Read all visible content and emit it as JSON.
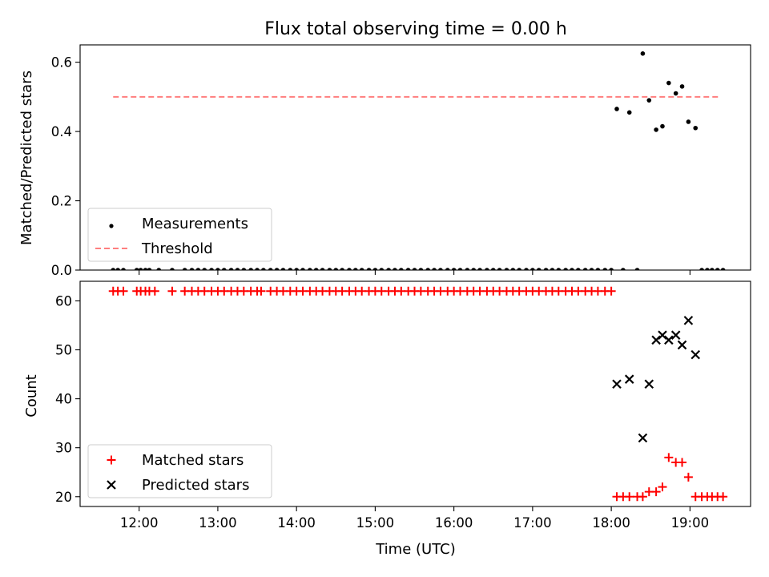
{
  "chart_data": [
    {
      "type": "scatter",
      "title": "Flux total observing time = 0.00 h",
      "xlabel": "",
      "ylabel": "Matched/Predicted stars",
      "xlim": [
        11.25,
        19.77
      ],
      "ylim": [
        0.0,
        0.65
      ],
      "yticks": [
        "0.0",
        "0.2",
        "0.4",
        "0.6"
      ],
      "legend_position": "lower-left",
      "series": [
        {
          "name": "Measurements",
          "marker": "dot",
          "color": "#000000",
          "x": [
            11.67,
            11.73,
            11.8,
            11.97,
            12.02,
            12.08,
            12.13,
            12.25,
            12.42,
            12.58,
            12.67,
            12.75,
            12.83,
            12.92,
            13.0,
            13.08,
            13.17,
            13.25,
            13.33,
            13.42,
            13.5,
            13.58,
            13.67,
            13.75,
            13.83,
            13.92,
            14.0,
            14.08,
            14.17,
            14.25,
            14.33,
            14.42,
            14.5,
            14.58,
            14.67,
            14.75,
            14.83,
            14.92,
            15.0,
            15.08,
            15.17,
            15.25,
            15.33,
            15.42,
            15.5,
            15.58,
            15.67,
            15.75,
            15.83,
            15.92,
            16.0,
            16.08,
            16.17,
            16.25,
            16.33,
            16.42,
            16.5,
            16.58,
            16.67,
            16.75,
            16.83,
            16.92,
            17.0,
            17.08,
            17.17,
            17.25,
            17.33,
            17.42,
            17.5,
            17.58,
            17.67,
            17.75,
            17.83,
            17.92,
            18.0,
            18.07,
            18.15,
            18.23,
            18.33,
            18.4,
            18.48,
            18.57,
            18.65,
            18.73,
            18.82,
            18.9,
            18.98,
            19.07,
            19.15,
            19.22,
            19.28,
            19.35,
            19.42
          ],
          "y": [
            0,
            0,
            0,
            0,
            0,
            0,
            0,
            0,
            0,
            0,
            0,
            0,
            0,
            0,
            0,
            0,
            0,
            0,
            0,
            0,
            0,
            0,
            0,
            0,
            0,
            0,
            0,
            0,
            0,
            0,
            0,
            0,
            0,
            0,
            0,
            0,
            0,
            0,
            0,
            0,
            0,
            0,
            0,
            0,
            0,
            0,
            0,
            0,
            0,
            0,
            0,
            0,
            0,
            0,
            0,
            0,
            0,
            0,
            0,
            0,
            0,
            0,
            0,
            0,
            0,
            0,
            0,
            0,
            0,
            0,
            0,
            0,
            0,
            0,
            0,
            0.465,
            0,
            0.455,
            0,
            0.625,
            0.49,
            0.405,
            0.415,
            0.54,
            0.51,
            0.53,
            0.428,
            0.41,
            0,
            0,
            0,
            0,
            0
          ]
        },
        {
          "name": "Threshold",
          "marker": "dashed-line",
          "color": "#ff7f7f",
          "x": [
            11.67,
            19.37
          ],
          "y": [
            0.5,
            0.5
          ]
        }
      ]
    },
    {
      "type": "scatter",
      "title": "",
      "xlabel": "Time (UTC)",
      "ylabel": "Count",
      "xlim": [
        11.25,
        19.77
      ],
      "ylim": [
        18,
        64
      ],
      "yticks": [
        "20",
        "30",
        "40",
        "50",
        "60"
      ],
      "xticks": [
        "12:00",
        "13:00",
        "14:00",
        "15:00",
        "16:00",
        "17:00",
        "18:00",
        "19:00"
      ],
      "legend_position": "lower-left",
      "series": [
        {
          "name": "Matched stars",
          "marker": "plus",
          "color": "#ff0000",
          "x": [
            11.67,
            11.73,
            11.8,
            11.97,
            12.02,
            12.08,
            12.13,
            12.2,
            12.42,
            12.58,
            12.67,
            12.75,
            12.83,
            12.92,
            13.0,
            13.08,
            13.17,
            13.25,
            13.33,
            13.42,
            13.5,
            13.55,
            13.67,
            13.75,
            13.83,
            13.92,
            14.0,
            14.08,
            14.17,
            14.25,
            14.33,
            14.42,
            14.5,
            14.58,
            14.67,
            14.75,
            14.83,
            14.92,
            15.0,
            15.08,
            15.17,
            15.25,
            15.33,
            15.42,
            15.5,
            15.58,
            15.67,
            15.75,
            15.83,
            15.92,
            16.0,
            16.08,
            16.17,
            16.25,
            16.33,
            16.42,
            16.5,
            16.58,
            16.67,
            16.75,
            16.83,
            16.92,
            17.0,
            17.08,
            17.17,
            17.25,
            17.33,
            17.42,
            17.5,
            17.58,
            17.67,
            17.75,
            17.83,
            17.92,
            18.0,
            18.07,
            18.15,
            18.23,
            18.33,
            18.4,
            18.48,
            18.57,
            18.65,
            18.73,
            18.82,
            18.9,
            18.98,
            19.07,
            19.15,
            19.22,
            19.28,
            19.35,
            19.42
          ],
          "y": [
            62,
            62,
            62,
            62,
            62,
            62,
            62,
            62,
            62,
            62,
            62,
            62,
            62,
            62,
            62,
            62,
            62,
            62,
            62,
            62,
            62,
            62,
            62,
            62,
            62,
            62,
            62,
            62,
            62,
            62,
            62,
            62,
            62,
            62,
            62,
            62,
            62,
            62,
            62,
            62,
            62,
            62,
            62,
            62,
            62,
            62,
            62,
            62,
            62,
            62,
            62,
            62,
            62,
            62,
            62,
            62,
            62,
            62,
            62,
            62,
            62,
            62,
            62,
            62,
            62,
            62,
            62,
            62,
            62,
            62,
            62,
            62,
            62,
            62,
            62,
            20,
            20,
            20,
            20,
            20,
            21,
            21,
            22,
            28,
            27,
            27,
            24,
            20,
            20,
            20,
            20,
            20,
            20
          ]
        },
        {
          "name": "Predicted stars",
          "marker": "x",
          "color": "#000000",
          "x": [
            18.07,
            18.23,
            18.4,
            18.48,
            18.57,
            18.65,
            18.73,
            18.82,
            18.9,
            18.98,
            19.07
          ],
          "y": [
            43,
            44,
            32,
            43,
            52,
            53,
            52,
            53,
            51,
            56,
            49
          ]
        }
      ]
    }
  ]
}
